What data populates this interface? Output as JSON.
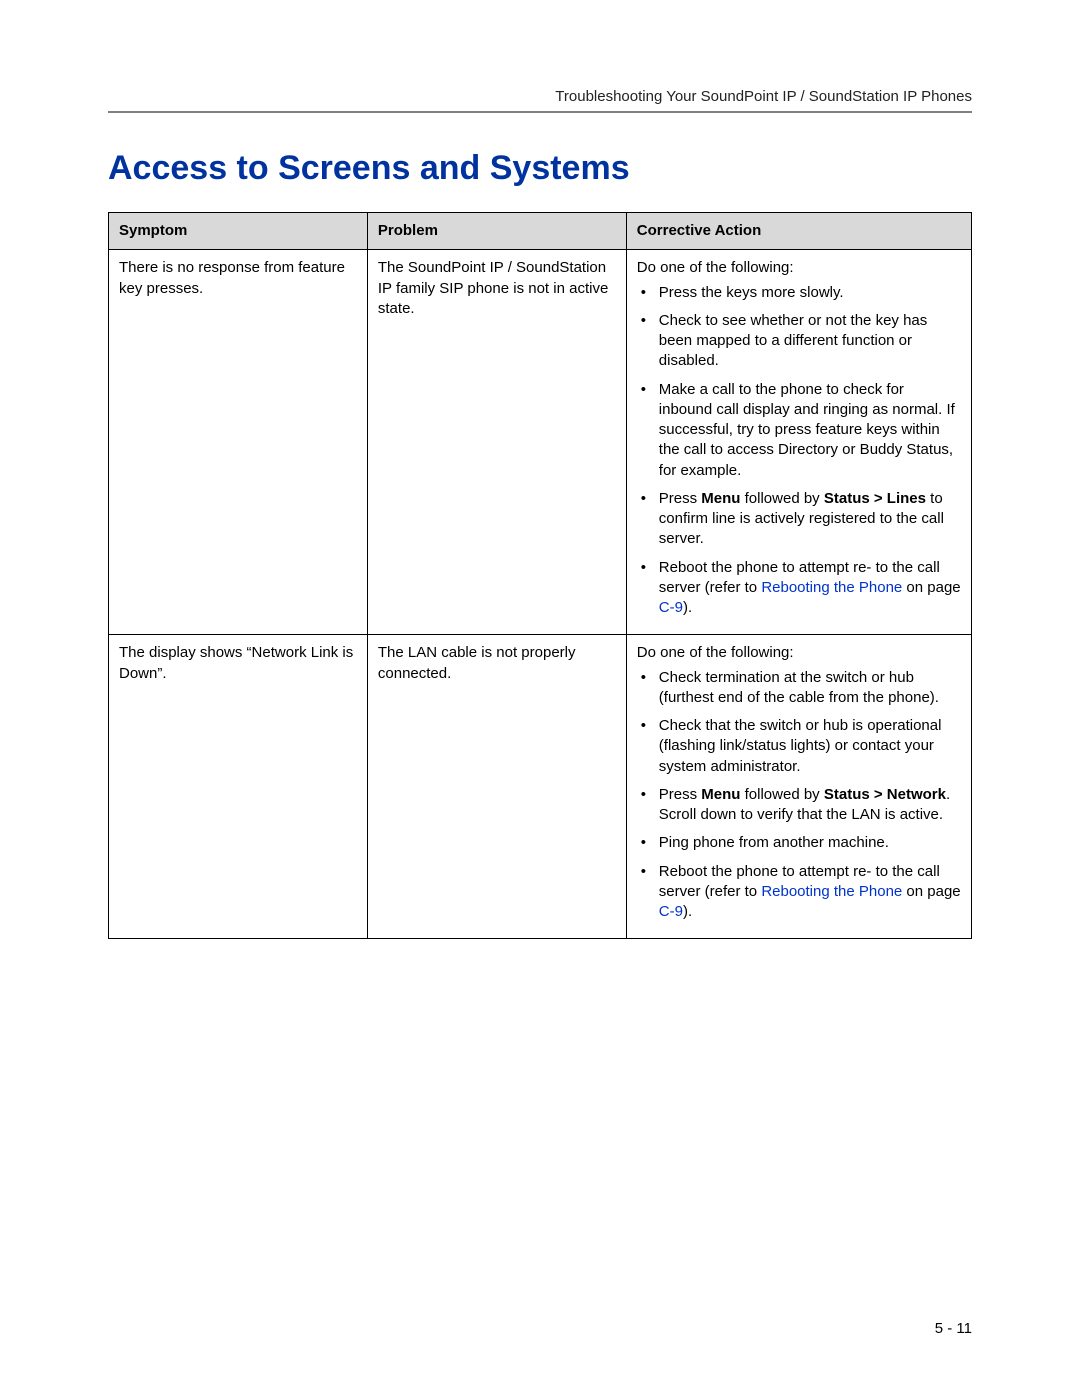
{
  "header": {
    "running": "Troubleshooting Your SoundPoint IP / SoundStation IP Phones"
  },
  "section": {
    "title": "Access to Screens and Systems"
  },
  "table": {
    "headers": {
      "symptom": "Symptom",
      "problem": "Problem",
      "action": "Corrective Action"
    },
    "rows": {
      "r1": {
        "symptom": "There is no response from feature key presses.",
        "problem": "The SoundPoint IP / SoundStation IP family SIP phone is not in active state.",
        "action_intro": "Do one of the following:",
        "b1": "Press the keys more slowly.",
        "b2": "Check to see whether or not the key has been mapped to a different function or disabled.",
        "b3": "Make a call to the phone to check for inbound call display and ringing as normal. If successful, try to press feature keys within the call to access Directory or Buddy Status, for example.",
        "b4_pre": "Press ",
        "b4_menu": "Menu",
        "b4_mid": " followed by ",
        "b4_status": "Status > Lines",
        "b4_post": " to confirm line is actively registered to the call server.",
        "b5_pre": "Reboot the phone to attempt re- to the call server (refer to ",
        "b5_link": "Rebooting the Phone",
        "b5_mid": " on page ",
        "b5_page": "C-9",
        "b5_post": ")."
      },
      "r2": {
        "symptom": "The display shows “Network Link is Down”.",
        "problem": "The LAN cable is not properly connected.",
        "action_intro": "Do one of the following:",
        "b1": "Check termination at the switch or hub (furthest end of the cable from the phone).",
        "b2": "Check that the switch or hub is operational (flashing link/status lights) or contact your system administrator.",
        "b3_pre": "Press ",
        "b3_menu": "Menu",
        "b3_mid": " followed by ",
        "b3_status": "Status > Network",
        "b3_post": ". Scroll down to verify that the LAN is active.",
        "b4": "Ping phone from another machine.",
        "b5_pre": "Reboot the phone to attempt re- to the call server (refer to ",
        "b5_link": "Rebooting the Phone",
        "b5_mid": " on page ",
        "b5_page": "C-9",
        "b5_post": ")."
      }
    }
  },
  "footer": {
    "page_number": "5 - 11"
  },
  "colors": {
    "heading": "#0033a0",
    "link": "#0033cc",
    "rule": "#808080",
    "th_bg": "#d9d9d9",
    "border": "#000000",
    "text": "#000000",
    "bg": "#ffffff"
  },
  "fonts": {
    "body_family": "Arial, Helvetica, sans-serif",
    "body_size_pt": 11,
    "heading_size_pt": 26,
    "heading_weight": "bold"
  }
}
